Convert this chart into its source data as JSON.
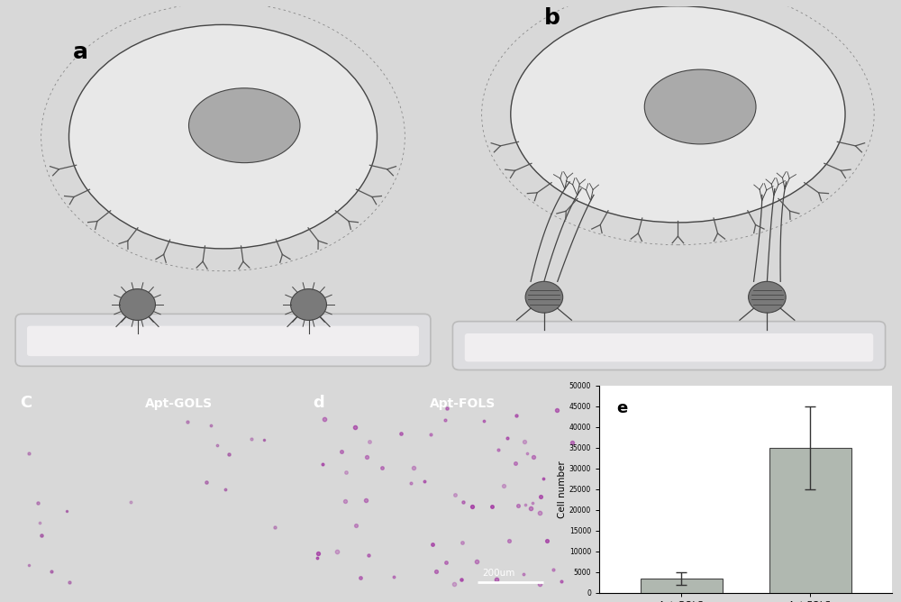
{
  "fig_width": 10.0,
  "fig_height": 6.68,
  "bg_color": "#d8d8d8",
  "panel_ab_bg": "#ffffff",
  "panel_cd_bg": "#050505",
  "panel_e_bg": "#ffffff",
  "bar_categories": [
    "Apt-GOLS",
    "Apt-FOLS"
  ],
  "bar_values": [
    3500,
    35000
  ],
  "bar_errors": [
    1500,
    10000
  ],
  "bar_color": "#b0b8b0",
  "ylabel_e": "Cell number",
  "ylim_e": [
    0,
    50000
  ],
  "yticks_e": [
    0,
    5000,
    10000,
    15000,
    20000,
    25000,
    30000,
    35000,
    40000,
    45000,
    50000
  ],
  "label_a": "a",
  "label_b": "b",
  "label_c": "C",
  "label_d": "d",
  "label_e": "e",
  "label_apt_gols": "Apt-GOLS",
  "label_apt_fols": "Apt-FOLS",
  "scalebar_text": "200um",
  "cell_body_color": "#e8e8e8",
  "cell_nucleus_color": "#aaaaaa",
  "stent_color": "#dddde0",
  "stent_border_color": "#bbbbbb",
  "nanoparticle_color": "#7a7a7a",
  "ligand_color": "#555555",
  "outline_color": "#444444",
  "dot_color_c": "#882288",
  "dot_color_d": "#993399"
}
